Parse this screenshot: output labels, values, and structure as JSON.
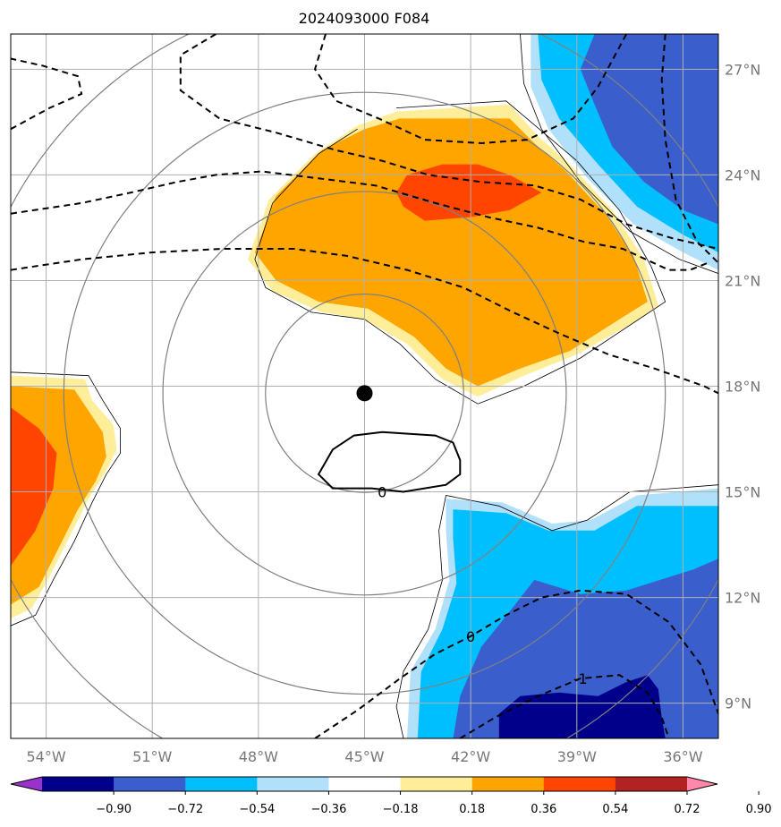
{
  "title": "2024093000 F084",
  "map": {
    "lon_range": [
      -55,
      -35
    ],
    "lat_range": [
      8,
      28
    ],
    "lon_ticks": [
      -54,
      -51,
      -48,
      -45,
      -42,
      -39,
      -36
    ],
    "lon_tick_labels": [
      "54°W",
      "51°W",
      "48°W",
      "45°W",
      "42°W",
      "39°W",
      "36°W"
    ],
    "lat_ticks": [
      9,
      12,
      15,
      18,
      21,
      24,
      27
    ],
    "lat_tick_labels": [
      "9°N",
      "12°N",
      "15°N",
      "18°N",
      "21°N",
      "24°N",
      "27°N"
    ],
    "center": {
      "lon": -45,
      "lat": 17.8
    },
    "range_ring_radii_deg": [
      2.8,
      5.7,
      8.5,
      11.3
    ],
    "grid": true,
    "colors": {
      "grid": "#b0b0b0",
      "ring": "#808080",
      "frame": "#000000",
      "center_dot": "#000000"
    },
    "fill_regions": [
      {
        "name": "warm-a-outer",
        "color": "#ffee99",
        "points": [
          [
            -44.1,
            25.8
          ],
          [
            -40.9,
            26.0
          ],
          [
            -40.1,
            25.1
          ],
          [
            -39.2,
            24.3
          ],
          [
            -38.0,
            23.0
          ],
          [
            -37.1,
            21.6
          ],
          [
            -36.7,
            20.3
          ],
          [
            -37.4,
            19.8
          ],
          [
            -39.0,
            18.9
          ],
          [
            -40.5,
            18.3
          ],
          [
            -41.8,
            17.7
          ],
          [
            -42.8,
            18.2
          ],
          [
            -43.8,
            19.2
          ],
          [
            -45.0,
            19.9
          ],
          [
            -46.2,
            20.1
          ],
          [
            -47.6,
            20.7
          ],
          [
            -48.3,
            21.6
          ],
          [
            -47.7,
            23.3
          ],
          [
            -46.4,
            24.6
          ],
          [
            -45.2,
            25.4
          ]
        ]
      },
      {
        "name": "warm-a-inner",
        "color": "#ffa500",
        "points": [
          [
            -44.0,
            25.6
          ],
          [
            -40.9,
            25.6
          ],
          [
            -40.2,
            24.9
          ],
          [
            -39.3,
            24.1
          ],
          [
            -38.2,
            22.9
          ],
          [
            -37.4,
            21.7
          ],
          [
            -37.0,
            20.4
          ],
          [
            -37.8,
            19.9
          ],
          [
            -39.2,
            19.0
          ],
          [
            -40.6,
            18.5
          ],
          [
            -41.8,
            18.0
          ],
          [
            -42.7,
            18.5
          ],
          [
            -43.6,
            19.4
          ],
          [
            -44.9,
            20.2
          ],
          [
            -46.3,
            20.4
          ],
          [
            -47.5,
            21.0
          ],
          [
            -48.1,
            21.8
          ],
          [
            -47.5,
            23.4
          ],
          [
            -46.2,
            24.7
          ],
          [
            -45.0,
            25.3
          ]
        ]
      },
      {
        "name": "warm-a-core",
        "color": "#ff4500",
        "points": [
          [
            -43.8,
            24.0
          ],
          [
            -42.8,
            24.3
          ],
          [
            -41.8,
            24.3
          ],
          [
            -40.9,
            24.0
          ],
          [
            -40.0,
            23.5
          ],
          [
            -40.9,
            23.0
          ],
          [
            -42.0,
            22.8
          ],
          [
            -43.3,
            22.7
          ],
          [
            -43.9,
            23.1
          ],
          [
            -44.1,
            23.5
          ]
        ]
      },
      {
        "name": "warm-b-outer",
        "color": "#ffee99",
        "points": [
          [
            -55,
            18.3
          ],
          [
            -52.9,
            18.2
          ],
          [
            -52.7,
            17.6
          ],
          [
            -52.1,
            16.9
          ],
          [
            -52.0,
            16.2
          ],
          [
            -52.3,
            15.6
          ],
          [
            -52.8,
            14.8
          ],
          [
            -53.3,
            13.8
          ],
          [
            -53.9,
            12.6
          ],
          [
            -54.4,
            11.7
          ],
          [
            -55,
            11.4
          ]
        ]
      },
      {
        "name": "warm-b-inner",
        "color": "#ffa500",
        "points": [
          [
            -55,
            18.0
          ],
          [
            -53.2,
            17.9
          ],
          [
            -52.8,
            17.3
          ],
          [
            -52.4,
            16.7
          ],
          [
            -52.3,
            16.0
          ],
          [
            -52.6,
            15.3
          ],
          [
            -53.1,
            14.5
          ],
          [
            -53.6,
            13.5
          ],
          [
            -54.2,
            12.3
          ],
          [
            -55,
            11.8
          ]
        ]
      },
      {
        "name": "warm-b-core",
        "color": "#ff4500",
        "points": [
          [
            -55,
            17.4
          ],
          [
            -54.2,
            16.8
          ],
          [
            -53.7,
            16.1
          ],
          [
            -53.8,
            15.1
          ],
          [
            -54.3,
            13.9
          ],
          [
            -55,
            12.9
          ]
        ]
      },
      {
        "name": "cool-a-outer",
        "color": "#b0e0fa",
        "points": [
          [
            -40.3,
            28
          ],
          [
            -35,
            28
          ],
          [
            -35,
            21.3
          ],
          [
            -36.0,
            21.8
          ],
          [
            -37.4,
            22.6
          ],
          [
            -38.7,
            23.9
          ],
          [
            -39.8,
            25.3
          ],
          [
            -40.3,
            26.5
          ]
        ]
      },
      {
        "name": "cool-a-inner",
        "color": "#00bfff",
        "points": [
          [
            -40.1,
            28
          ],
          [
            -35,
            28
          ],
          [
            -35,
            21.8
          ],
          [
            -36.0,
            22.3
          ],
          [
            -37.3,
            23.1
          ],
          [
            -38.4,
            24.3
          ],
          [
            -39.5,
            25.6
          ],
          [
            -40.0,
            26.7
          ]
        ]
      },
      {
        "name": "cool-a-core",
        "color": "#3a5fcd",
        "points": [
          [
            -38.5,
            28
          ],
          [
            -35,
            28
          ],
          [
            -35,
            22.6
          ],
          [
            -36.0,
            23.0
          ],
          [
            -37.1,
            23.8
          ],
          [
            -38.0,
            24.8
          ],
          [
            -38.5,
            26.0
          ],
          [
            -38.9,
            27.0
          ]
        ]
      },
      {
        "name": "cool-b-outer",
        "color": "#b0e0fa",
        "points": [
          [
            -42.7,
            14.8
          ],
          [
            -41.1,
            14.7
          ],
          [
            -39.7,
            14.1
          ],
          [
            -38.6,
            14.2
          ],
          [
            -37.3,
            14.9
          ],
          [
            -35,
            15.1
          ],
          [
            -35,
            8
          ],
          [
            -43.8,
            8
          ],
          [
            -43.7,
            9.9
          ],
          [
            -43.0,
            11.1
          ],
          [
            -42.6,
            12.5
          ],
          [
            -42.7,
            13.9
          ]
        ]
      },
      {
        "name": "cool-b-inner",
        "color": "#00bfff",
        "points": [
          [
            -42.5,
            14.5
          ],
          [
            -41.0,
            14.4
          ],
          [
            -39.8,
            13.9
          ],
          [
            -38.5,
            13.9
          ],
          [
            -37.3,
            14.6
          ],
          [
            -35,
            14.6
          ],
          [
            -35,
            8
          ],
          [
            -43.5,
            8
          ],
          [
            -43.4,
            9.9
          ],
          [
            -42.8,
            11.1
          ],
          [
            -42.4,
            12.4
          ],
          [
            -42.5,
            13.7
          ]
        ]
      },
      {
        "name": "cool-b-core",
        "color": "#3a5fcd",
        "points": [
          [
            -40.2,
            12.5
          ],
          [
            -38.9,
            12.1
          ],
          [
            -37.6,
            12.2
          ],
          [
            -35.7,
            12.8
          ],
          [
            -35,
            13.1
          ],
          [
            -35,
            8
          ],
          [
            -42.5,
            8
          ],
          [
            -42.3,
            9.2
          ],
          [
            -41.7,
            10.6
          ],
          [
            -40.9,
            11.6
          ]
        ]
      },
      {
        "name": "cool-b-deep",
        "color": "#00008b",
        "points": [
          [
            -40.6,
            9.2
          ],
          [
            -39.5,
            9.3
          ],
          [
            -38.4,
            9.2
          ],
          [
            -37.6,
            9.6
          ],
          [
            -37.0,
            9.8
          ],
          [
            -36.7,
            9.4
          ],
          [
            -36.6,
            8.6
          ],
          [
            -36.5,
            8
          ],
          [
            -41.2,
            8
          ],
          [
            -41.2,
            8.7
          ]
        ]
      }
    ],
    "zero_contour_shading": [
      [
        [
          -44.1,
          25.9
        ],
        [
          -41.0,
          26.1
        ],
        [
          -39.0,
          24.4
        ],
        [
          -37.8,
          23.0
        ],
        [
          -36.9,
          21.4
        ],
        [
          -36.5,
          20.4
        ],
        [
          -38.9,
          18.8
        ],
        [
          -40.5,
          18.0
        ],
        [
          -41.8,
          17.5
        ],
        [
          -43.0,
          18.2
        ],
        [
          -44.0,
          19.2
        ],
        [
          -45.0,
          19.9
        ],
        [
          -46.5,
          20.1
        ],
        [
          -47.8,
          20.8
        ],
        [
          -48.1,
          21.6
        ],
        [
          -47.6,
          23.2
        ],
        [
          -46.3,
          24.6
        ],
        [
          -45.2,
          25.3
        ]
      ],
      [
        [
          -55,
          18.4
        ],
        [
          -52.8,
          18.3
        ],
        [
          -52.4,
          17.6
        ],
        [
          -51.9,
          16.8
        ],
        [
          -51.9,
          16.1
        ],
        [
          -52.3,
          15.5
        ],
        [
          -52.7,
          14.7
        ],
        [
          -53.2,
          13.6
        ],
        [
          -53.8,
          12.5
        ],
        [
          -54.3,
          11.5
        ],
        [
          -55,
          11.2
        ]
      ],
      [
        [
          -40.6,
          28
        ],
        [
          -40.5,
          26.6
        ],
        [
          -40.0,
          25.3
        ],
        [
          -38.9,
          23.8
        ],
        [
          -37.5,
          22.4
        ],
        [
          -36.1,
          21.6
        ],
        [
          -35,
          21.2
        ]
      ],
      [
        [
          -35,
          15.2
        ],
        [
          -37.5,
          15.0
        ],
        [
          -38.7,
          14.2
        ],
        [
          -39.7,
          13.9
        ],
        [
          -41.2,
          14.6
        ],
        [
          -42.7,
          14.9
        ],
        [
          -42.9,
          13.9
        ],
        [
          -42.8,
          12.5
        ],
        [
          -43.2,
          11.1
        ],
        [
          -43.9,
          9.9
        ],
        [
          -44.1,
          8.9
        ],
        [
          -43.9,
          8
        ]
      ]
    ],
    "dashed_contours": [
      [
        [
          -55,
          25.3
        ],
        [
          -53.9,
          25.9
        ],
        [
          -53.0,
          26.3
        ],
        [
          -53.1,
          26.8
        ],
        [
          -54.1,
          27.1
        ],
        [
          -55,
          27.3
        ]
      ],
      [
        [
          -55,
          22.9
        ],
        [
          -53.0,
          23.2
        ],
        [
          -51.6,
          23.5
        ],
        [
          -50.3,
          23.8
        ],
        [
          -49.2,
          24.0
        ],
        [
          -47.9,
          24.1
        ],
        [
          -46.3,
          23.9
        ],
        [
          -44.7,
          23.7
        ],
        [
          -43.0,
          23.2
        ],
        [
          -41.5,
          22.8
        ],
        [
          -40.1,
          22.5
        ],
        [
          -38.8,
          22.1
        ],
        [
          -37.7,
          21.9
        ],
        [
          -36.4,
          21.3
        ],
        [
          -35.8,
          21.3
        ],
        [
          -35.3,
          21.5
        ]
      ],
      [
        [
          -55,
          21.3
        ],
        [
          -53.0,
          21.6
        ],
        [
          -51.0,
          21.8
        ],
        [
          -49.0,
          21.9
        ],
        [
          -47.0,
          21.9
        ],
        [
          -45.5,
          21.7
        ],
        [
          -43.8,
          21.3
        ],
        [
          -42.2,
          20.8
        ],
        [
          -40.8,
          20.1
        ],
        [
          -39.5,
          19.5
        ],
        [
          -38.1,
          18.9
        ],
        [
          -36.8,
          18.5
        ],
        [
          -35.4,
          18.0
        ],
        [
          -35,
          17.8
        ]
      ],
      [
        [
          -49.2,
          28
        ],
        [
          -50.2,
          27.4
        ],
        [
          -50.2,
          26.4
        ],
        [
          -49.1,
          25.6
        ],
        [
          -47.5,
          25.2
        ],
        [
          -45.8,
          24.7
        ],
        [
          -44.5,
          24.4
        ],
        [
          -43.2,
          24.0
        ],
        [
          -41.7,
          23.8
        ],
        [
          -40.2,
          23.7
        ],
        [
          -38.9,
          23.3
        ],
        [
          -37.6,
          22.6
        ],
        [
          -36.3,
          22.2
        ],
        [
          -35,
          21.9
        ]
      ],
      [
        [
          -46.1,
          28
        ],
        [
          -46.4,
          27.0
        ],
        [
          -45.8,
          26.1
        ],
        [
          -44.6,
          25.6
        ],
        [
          -43.3,
          25.0
        ],
        [
          -41.7,
          24.9
        ],
        [
          -40.4,
          25.0
        ],
        [
          -39.1,
          25.6
        ],
        [
          -38.4,
          26.5
        ],
        [
          -37.6,
          28
        ]
      ],
      [
        [
          -36.5,
          28
        ],
        [
          -36.6,
          26.7
        ],
        [
          -36.5,
          25.0
        ],
        [
          -36.2,
          23.3
        ],
        [
          -35.6,
          22.1
        ],
        [
          -35,
          21.5
        ]
      ],
      [
        [
          -46.4,
          8
        ],
        [
          -45.2,
          8.8
        ],
        [
          -44.0,
          9.7
        ],
        [
          -43.0,
          10.4
        ],
        [
          -42.0,
          10.9
        ],
        [
          -41.0,
          11.5
        ],
        [
          -40.0,
          12.0
        ],
        [
          -38.9,
          12.2
        ],
        [
          -37.6,
          12.1
        ],
        [
          -36.4,
          11.3
        ],
        [
          -35.5,
          10.1
        ],
        [
          -35,
          8.7
        ]
      ],
      [
        [
          -42.3,
          8
        ],
        [
          -41.3,
          8.6
        ],
        [
          -40.1,
          9.2
        ],
        [
          -38.9,
          9.7
        ],
        [
          -37.8,
          9.8
        ],
        [
          -37.0,
          9.3
        ],
        [
          -36.6,
          8.6
        ],
        [
          -36.4,
          8
        ]
      ]
    ],
    "solid_contours": [
      [
        [
          -46.3,
          15.5
        ],
        [
          -45.9,
          16.2
        ],
        [
          -45.3,
          16.6
        ],
        [
          -44.5,
          16.7
        ],
        [
          -43.0,
          16.6
        ],
        [
          -42.5,
          16.4
        ],
        [
          -42.3,
          15.9
        ],
        [
          -42.3,
          15.5
        ],
        [
          -42.7,
          15.2
        ],
        [
          -43.9,
          15.0
        ],
        [
          -44.8,
          15.1
        ],
        [
          -45.9,
          15.1
        ]
      ]
    ],
    "contour_labels": [
      {
        "text": "0",
        "lon": -44.5,
        "lat": 15.0
      },
      {
        "text": "0",
        "lon": -42.0,
        "lat": 10.9
      },
      {
        "text": "-1",
        "lon": -38.9,
        "lat": 9.7
      }
    ]
  },
  "colorbar": {
    "colors": [
      "#9932cc",
      "#00008b",
      "#3a5fcd",
      "#00bfff",
      "#b0e0fa",
      "#ffffff",
      "#ffee99",
      "#ffa500",
      "#ff4500",
      "#b22222",
      "#ff88aa"
    ],
    "tick_labels": [
      "−0.90",
      "−0.72",
      "−0.54",
      "−0.36",
      "−0.18",
      "0.18",
      "0.36",
      "0.54",
      "0.72",
      "0.90"
    ],
    "extend": "both"
  }
}
